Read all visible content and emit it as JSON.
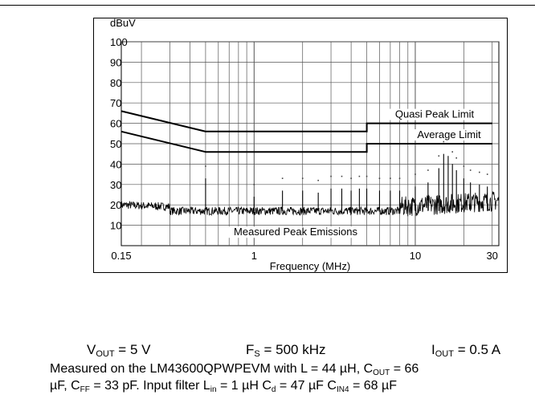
{
  "chart_data": {
    "type": "line",
    "title": "",
    "xlabel": "Frequency (MHz)",
    "ylabel": "dBuV",
    "x_scale": "log",
    "xlim": [
      0.15,
      33
    ],
    "ylim": [
      0,
      100
    ],
    "grid": true,
    "yticks": [
      10,
      20,
      30,
      40,
      50,
      60,
      70,
      80,
      90,
      100
    ],
    "xtick_labels": [
      {
        "value": 0.15,
        "label": "0.15"
      },
      {
        "value": 1,
        "label": "1"
      },
      {
        "value": 10,
        "label": "10"
      },
      {
        "value": 30,
        "label": "30"
      }
    ],
    "series": [
      {
        "name": "Quasi Peak Limit",
        "x": [
          0.15,
          0.5,
          5,
          5,
          30
        ],
        "y": [
          66,
          56,
          56,
          60,
          60
        ]
      },
      {
        "name": "Average Limit",
        "x": [
          0.15,
          0.5,
          5,
          5,
          30
        ],
        "y": [
          56,
          46,
          46,
          50,
          50
        ]
      },
      {
        "name": "Measured Peak Emissions",
        "floor_y": 17,
        "spikes": [
          {
            "x": 0.5,
            "y": 33
          },
          {
            "x": 1.0,
            "y": 24
          },
          {
            "x": 1.5,
            "y": 27
          },
          {
            "x": 2.0,
            "y": 27
          },
          {
            "x": 2.5,
            "y": 26
          },
          {
            "x": 3.0,
            "y": 28
          },
          {
            "x": 3.5,
            "y": 28
          },
          {
            "x": 4.0,
            "y": 27
          },
          {
            "x": 4.5,
            "y": 28
          },
          {
            "x": 5.0,
            "y": 28
          },
          {
            "x": 6.0,
            "y": 27
          },
          {
            "x": 7.0,
            "y": 27
          },
          {
            "x": 8.0,
            "y": 27
          },
          {
            "x": 10.0,
            "y": 29
          },
          {
            "x": 12.0,
            "y": 31
          },
          {
            "x": 14.0,
            "y": 38
          },
          {
            "x": 15.0,
            "y": 45
          },
          {
            "x": 16.0,
            "y": 44
          },
          {
            "x": 17.0,
            "y": 40
          },
          {
            "x": 18.0,
            "y": 37
          },
          {
            "x": 20.0,
            "y": 33
          },
          {
            "x": 22.0,
            "y": 31
          },
          {
            "x": 25.0,
            "y": 30
          },
          {
            "x": 28.0,
            "y": 29
          }
        ]
      }
    ],
    "annotations": [
      "Quasi Peak Limit",
      "Average Limit",
      "Measured Peak Emissions"
    ]
  },
  "conditions": {
    "vout": {
      "sym": "V",
      "sub": "OUT",
      "rest": " = 5 V"
    },
    "fs": {
      "sym": "F",
      "sub": "S",
      "rest": " = 500 kHz"
    },
    "iout": {
      "sym": "I",
      "sub": "OUT",
      "rest": " = 0.5 A"
    }
  },
  "note": {
    "l1a": "Measured on the LM43600QPWPEVM with L = 44 µH, C",
    "l1a_sub": "OUT",
    "l1b": " = 66",
    "l2a": "µF, C",
    "l2a_sub": "FF",
    "l2b": " = 33 pF. Input filter L",
    "l2b_sub": "in",
    "l2c": " = 1 µH C",
    "l2c_sub": "d",
    "l2d": " = 47 µF C",
    "l2d_sub": "IN4",
    "l2e": " = 68 µF"
  }
}
